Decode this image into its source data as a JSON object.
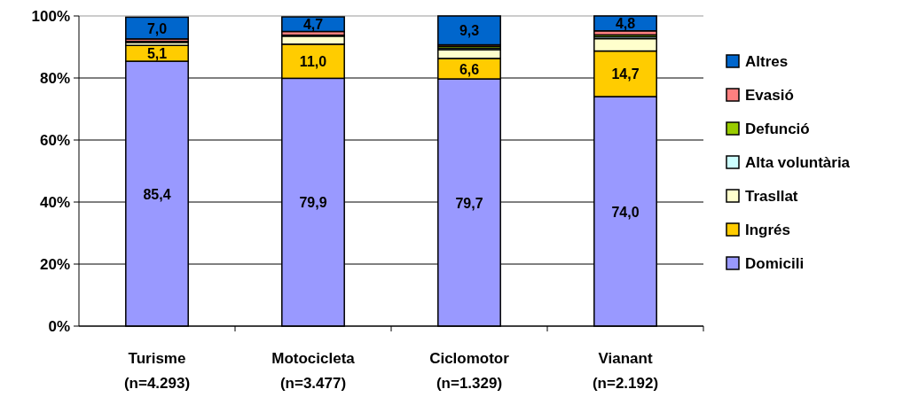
{
  "chart_data": {
    "type": "bar",
    "stacked": true,
    "categories": [
      "Turisme\n(n=4.293)",
      "Motocicleta\n(n=3.477)",
      "Ciclomotor\n(n=1.329)",
      "Vianant\n(n=2.192)"
    ],
    "series": [
      {
        "name": "Domicili",
        "color": "#9999ff",
        "values": [
          85.4,
          79.9,
          79.7,
          74.0
        ],
        "value_labels": [
          "85,4",
          "79,9",
          "79,7",
          "74,0"
        ]
      },
      {
        "name": "Ingrés",
        "color": "#ffcc00",
        "values": [
          5.1,
          11.0,
          6.6,
          14.7
        ],
        "value_labels": [
          "5,1",
          "11,0",
          "6,6",
          "14,7"
        ]
      },
      {
        "name": "Trasllat",
        "color": "#ffffcc",
        "values": [
          1.0,
          2.6,
          2.8,
          4.0
        ],
        "value_labels": [
          null,
          null,
          null,
          null
        ]
      },
      {
        "name": "Alta voluntària",
        "color": "#ccffff",
        "values": [
          0.3,
          0.3,
          0.5,
          0.6
        ],
        "value_labels": [
          null,
          null,
          null,
          null
        ]
      },
      {
        "name": "Defunció",
        "color": "#99cc00",
        "values": [
          null,
          null,
          0.6,
          0.6
        ],
        "value_labels": [
          null,
          null,
          null,
          null
        ]
      },
      {
        "name": "Evasió",
        "color": "#ff8080",
        "values": [
          0.8,
          1.2,
          0.5,
          1.3
        ],
        "value_labels": [
          null,
          null,
          null,
          null
        ]
      },
      {
        "name": "Altres",
        "color": "#0066cc",
        "values": [
          7.0,
          4.7,
          9.3,
          4.8
        ],
        "value_labels": [
          "7,0",
          "4,7",
          "9,3",
          "4,8"
        ]
      }
    ],
    "ylim": [
      0,
      100
    ],
    "yticks": [
      {
        "value": 0,
        "label": "0%"
      },
      {
        "value": 20,
        "label": "20%"
      },
      {
        "value": 40,
        "label": "40%"
      },
      {
        "value": 60,
        "label": "60%"
      },
      {
        "value": 80,
        "label": "80%"
      },
      {
        "value": 100,
        "label": "100%"
      }
    ],
    "grid": "y",
    "legend": "right"
  }
}
